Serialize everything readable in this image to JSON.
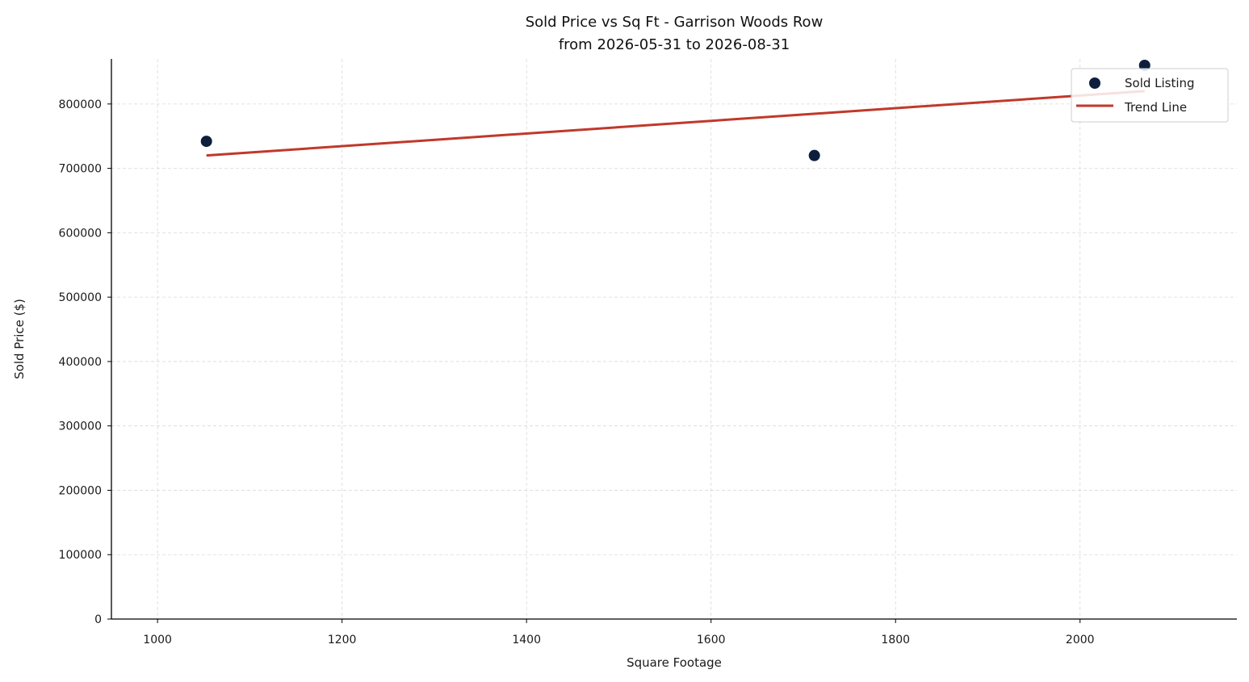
{
  "chart_data": {
    "type": "scatter",
    "title": "Sold Price vs Sq Ft - Garrison Woods Row",
    "subtitle": "from 2026-05-31 to 2026-08-31",
    "xlabel": "Square Footage",
    "ylabel": "Sold Price ($)",
    "xlim": [
      950,
      2170
    ],
    "ylim": [
      0,
      870000
    ],
    "xticks": [
      1000,
      1200,
      1400,
      1600,
      1800,
      2000
    ],
    "yticks": [
      0,
      100000,
      200000,
      300000,
      400000,
      500000,
      600000,
      700000,
      800000
    ],
    "grid": true,
    "legend_position": "top-right",
    "series": [
      {
        "name": "Sold Listing",
        "kind": "scatter",
        "color": "#0d1f3c",
        "points": [
          {
            "x": 1053,
            "y": 742000
          },
          {
            "x": 1712,
            "y": 720000
          },
          {
            "x": 2070,
            "y": 860000
          }
        ]
      },
      {
        "name": "Trend Line",
        "kind": "line",
        "color": "#c0392b",
        "points": [
          {
            "x": 1053,
            "y": 720000
          },
          {
            "x": 2070,
            "y": 820000
          }
        ]
      }
    ]
  }
}
